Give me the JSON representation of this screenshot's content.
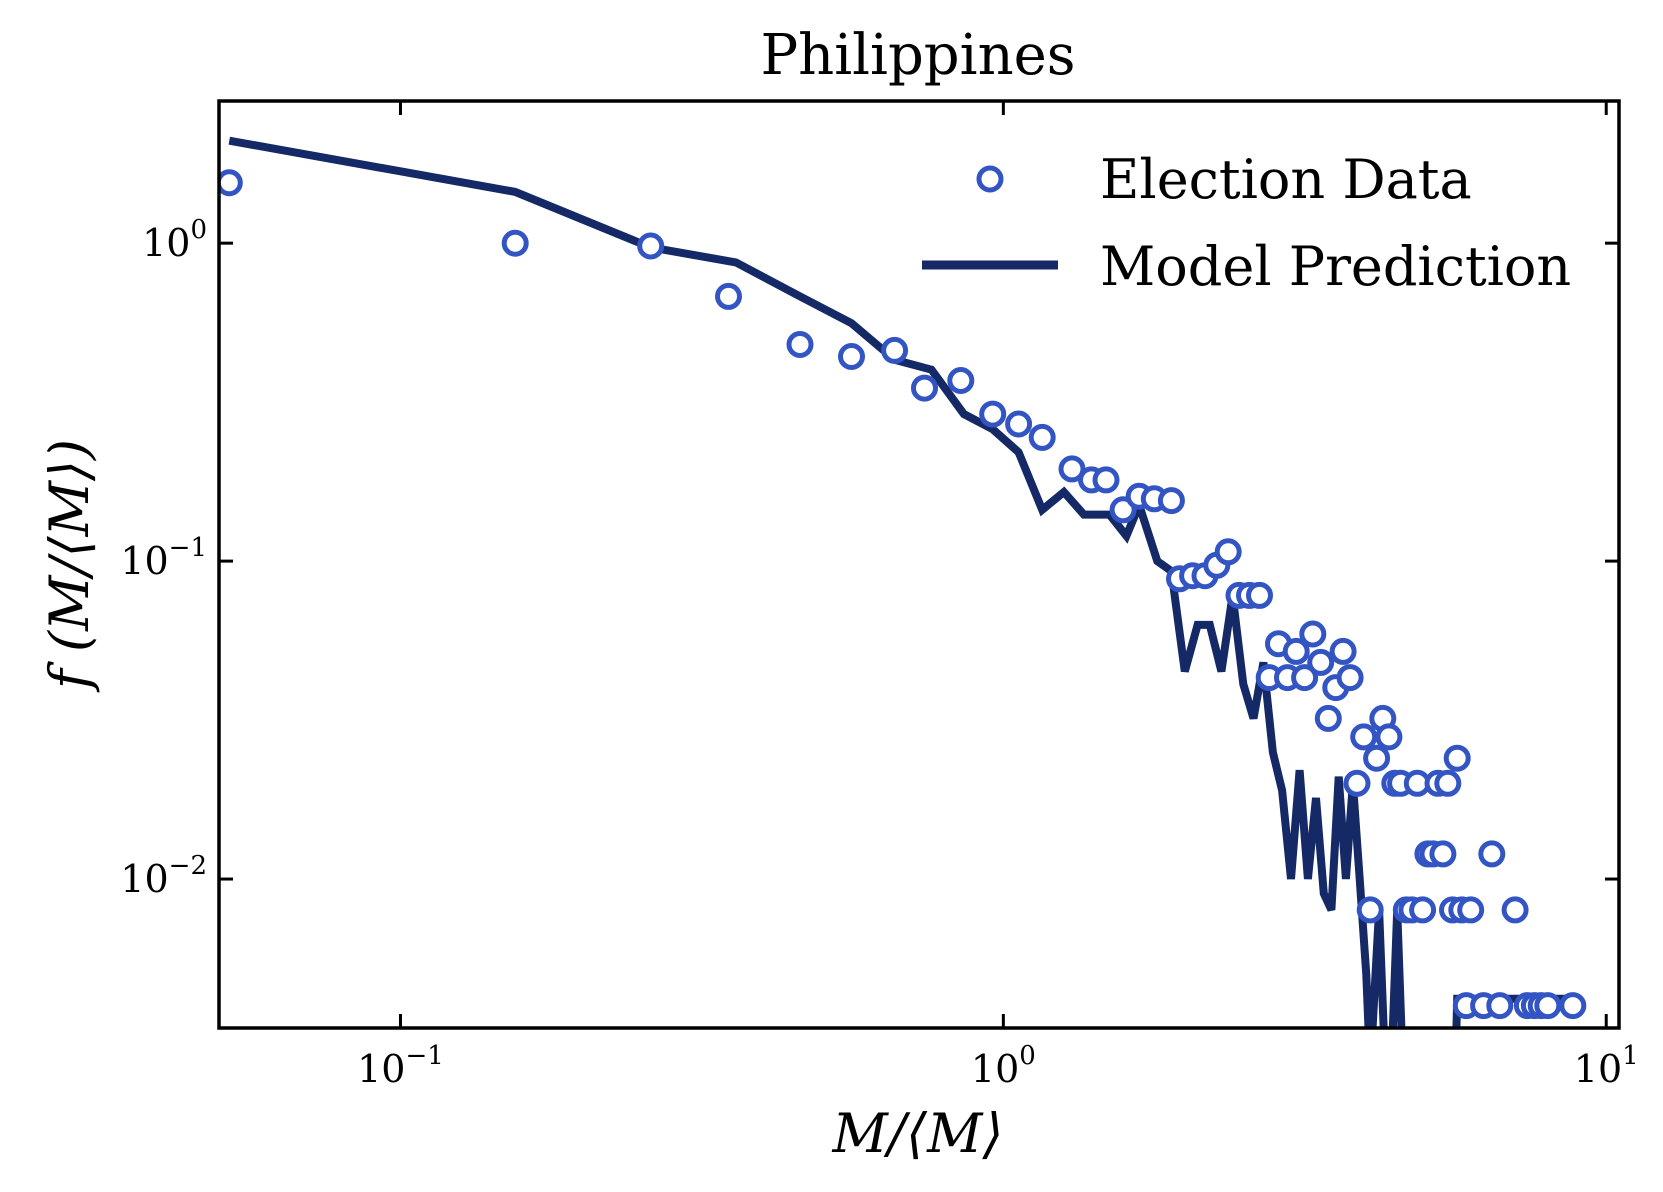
{
  "chart_data": {
    "type": "scatter",
    "title": "Philippines",
    "xlabel": "M/⟨M⟩",
    "ylabel": "f (M/⟨M⟩)",
    "xscale": "log",
    "yscale": "log",
    "xlim": [
      0.05,
      10.5
    ],
    "ylim": [
      0.0034,
      2.8
    ],
    "x_ticks": [
      {
        "value": 0.1,
        "base": "10",
        "exp": "−1"
      },
      {
        "value": 1,
        "base": "10",
        "exp": "0"
      },
      {
        "value": 10,
        "base": "10",
        "exp": "1"
      }
    ],
    "y_ticks": [
      {
        "value": 0.01,
        "base": "10",
        "exp": "−2"
      },
      {
        "value": 0.1,
        "base": "10",
        "exp": "−1"
      },
      {
        "value": 1,
        "base": "10",
        "exp": "0"
      }
    ],
    "legend_position": "top-right",
    "series": [
      {
        "name": "Election Data",
        "kind": "markers",
        "color": "#3355c4",
        "points": [
          [
            0.052,
            1.55
          ],
          [
            0.155,
            1.0
          ],
          [
            0.26,
            0.98
          ],
          [
            0.35,
            0.68
          ],
          [
            0.46,
            0.48
          ],
          [
            0.56,
            0.44
          ],
          [
            0.66,
            0.46
          ],
          [
            0.74,
            0.35
          ],
          [
            0.85,
            0.37
          ],
          [
            0.96,
            0.29
          ],
          [
            1.06,
            0.27
          ],
          [
            1.16,
            0.245
          ],
          [
            1.3,
            0.195
          ],
          [
            1.4,
            0.18
          ],
          [
            1.48,
            0.18
          ],
          [
            1.58,
            0.145
          ],
          [
            1.68,
            0.16
          ],
          [
            1.78,
            0.157
          ],
          [
            1.9,
            0.155
          ],
          [
            1.96,
            0.088
          ],
          [
            2.06,
            0.09
          ],
          [
            2.16,
            0.09
          ],
          [
            2.26,
            0.097
          ],
          [
            2.36,
            0.107
          ],
          [
            2.46,
            0.078
          ],
          [
            2.56,
            0.078
          ],
          [
            2.66,
            0.078
          ],
          [
            2.76,
            0.043
          ],
          [
            2.86,
            0.055
          ],
          [
            2.96,
            0.043
          ],
          [
            3.06,
            0.052
          ],
          [
            3.16,
            0.043
          ],
          [
            3.26,
            0.059
          ],
          [
            3.36,
            0.048
          ],
          [
            3.46,
            0.032
          ],
          [
            3.56,
            0.04
          ],
          [
            3.66,
            0.052
          ],
          [
            3.76,
            0.043
          ],
          [
            3.86,
            0.02
          ],
          [
            3.96,
            0.028
          ],
          [
            4.06,
            0.008
          ],
          [
            4.16,
            0.024
          ],
          [
            4.26,
            0.032
          ],
          [
            4.36,
            0.028
          ],
          [
            4.46,
            0.02
          ],
          [
            4.56,
            0.02
          ],
          [
            4.66,
            0.008
          ],
          [
            4.76,
            0.008
          ],
          [
            4.86,
            0.02
          ],
          [
            4.96,
            0.008
          ],
          [
            5.06,
            0.012
          ],
          [
            5.16,
            0.012
          ],
          [
            5.26,
            0.02
          ],
          [
            5.36,
            0.012
          ],
          [
            5.46,
            0.02
          ],
          [
            5.56,
            0.008
          ],
          [
            5.66,
            0.024
          ],
          [
            5.76,
            0.008
          ],
          [
            5.86,
            0.004
          ],
          [
            5.96,
            0.008
          ],
          [
            6.26,
            0.004
          ],
          [
            6.46,
            0.012
          ],
          [
            6.66,
            0.004
          ],
          [
            7.06,
            0.008
          ],
          [
            7.4,
            0.004
          ],
          [
            7.6,
            0.004
          ],
          [
            7.8,
            0.004
          ],
          [
            8.0,
            0.004
          ],
          [
            8.8,
            0.004
          ]
        ]
      },
      {
        "name": "Model Prediction",
        "kind": "line",
        "color": "#142966",
        "points": [
          [
            0.052,
            2.1
          ],
          [
            0.155,
            1.45
          ],
          [
            0.26,
            0.97
          ],
          [
            0.36,
            0.87
          ],
          [
            0.46,
            0.68
          ],
          [
            0.56,
            0.56
          ],
          [
            0.66,
            0.43
          ],
          [
            0.76,
            0.4
          ],
          [
            0.86,
            0.29
          ],
          [
            0.96,
            0.26
          ],
          [
            1.06,
            0.22
          ],
          [
            1.16,
            0.145
          ],
          [
            1.26,
            0.165
          ],
          [
            1.36,
            0.14
          ],
          [
            1.5,
            0.14
          ],
          [
            1.6,
            0.12
          ],
          [
            1.68,
            0.15
          ],
          [
            1.8,
            0.1
          ],
          [
            1.9,
            0.093
          ],
          [
            2.0,
            0.045
          ],
          [
            2.1,
            0.063
          ],
          [
            2.2,
            0.063
          ],
          [
            2.3,
            0.045
          ],
          [
            2.4,
            0.078
          ],
          [
            2.5,
            0.041
          ],
          [
            2.6,
            0.032
          ],
          [
            2.7,
            0.048
          ],
          [
            2.8,
            0.025
          ],
          [
            2.9,
            0.019
          ],
          [
            3.0,
            0.01
          ],
          [
            3.1,
            0.022
          ],
          [
            3.2,
            0.01
          ],
          [
            3.3,
            0.018
          ],
          [
            3.4,
            0.009
          ],
          [
            3.5,
            0.008
          ],
          [
            3.6,
            0.021
          ],
          [
            3.7,
            0.01
          ],
          [
            3.8,
            0.02
          ],
          [
            3.9,
            0.01
          ],
          [
            4.0,
            0.005
          ],
          [
            4.06,
            0.0025
          ],
          [
            4.2,
            0.008
          ],
          [
            4.3,
            0.0025
          ],
          [
            4.4,
            0.0025
          ],
          [
            4.5,
            0.008
          ],
          [
            4.6,
            0.0025
          ],
          [
            4.7,
            0.0025
          ],
          [
            4.8,
            0.0025
          ],
          [
            4.9,
            0.0025
          ],
          [
            5.0,
            0.0025
          ],
          [
            5.2,
            0.0025
          ],
          [
            5.5,
            0.0025
          ],
          [
            5.62,
            0.0025
          ],
          [
            5.66,
            0.0042
          ],
          [
            5.8,
            0.0042
          ],
          [
            6.0,
            0.0042
          ],
          [
            6.5,
            0.0042
          ],
          [
            7.5,
            0.0042
          ],
          [
            9.0,
            0.0042
          ]
        ]
      }
    ]
  }
}
